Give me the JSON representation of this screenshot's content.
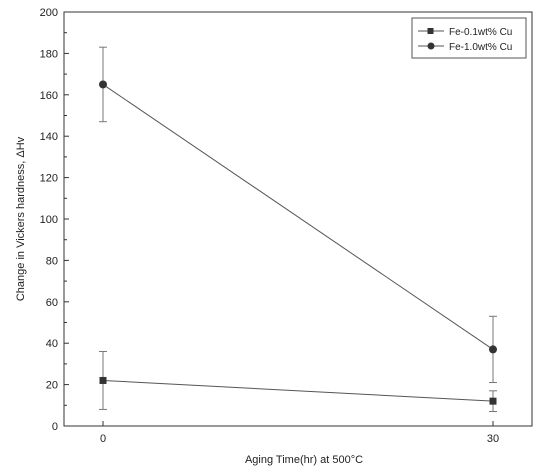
{
  "chart_data": {
    "type": "line",
    "xlabel": "Aging Time(hr) at 500°C",
    "ylabel": "Change in Vickers hardness, ΔHv",
    "x": [
      0,
      30
    ],
    "x_ticks": [
      "0",
      "30"
    ],
    "xlim": [
      -3,
      33
    ],
    "ylim": [
      0,
      200
    ],
    "y_ticks": [
      0,
      20,
      40,
      60,
      80,
      100,
      120,
      140,
      160,
      180,
      200
    ],
    "grid": false,
    "legend": "top-right",
    "series": [
      {
        "name": "Fe-0.1wt% Cu",
        "marker": "square",
        "color": "#333333",
        "values": [
          22,
          12
        ],
        "errors": [
          14,
          5
        ]
      },
      {
        "name": "Fe-1.0wt% Cu",
        "marker": "circle",
        "color": "#333333",
        "values": [
          165,
          37
        ],
        "errors": [
          18,
          16
        ]
      }
    ]
  }
}
